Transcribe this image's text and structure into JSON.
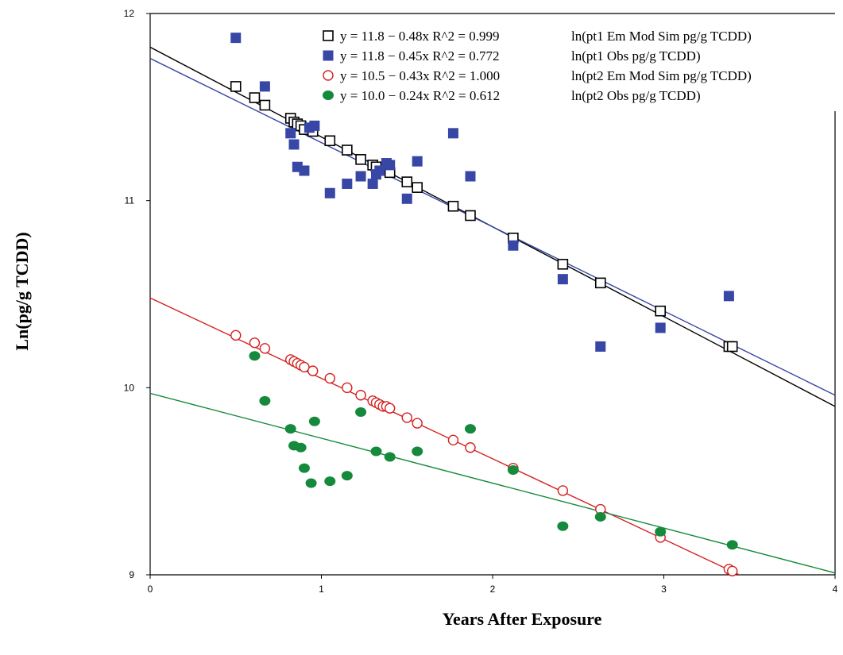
{
  "chart_data": {
    "type": "scatter",
    "xlabel": "Years After Exposure",
    "ylabel": "Ln(pg/g TCDD)",
    "xlim": [
      0,
      4
    ],
    "ylim": [
      9,
      12
    ],
    "x_ticks": [
      "0",
      "1",
      "2",
      "3",
      "4"
    ],
    "y_ticks": [
      "9",
      "10",
      "11",
      "12"
    ],
    "grid": false,
    "legend_position": "top",
    "series": [
      {
        "name": "ln(pt1 Em Mod Sim pg/g TCDD)",
        "equation": "y = 11.8 − 0.48x R^2 = 0.999",
        "color": "#000000",
        "marker": "open-square",
        "fit": {
          "intercept": 11.82,
          "slope": -0.48
        },
        "x": [
          0.5,
          0.61,
          0.67,
          0.82,
          0.84,
          0.86,
          0.88,
          0.9,
          0.95,
          1.05,
          1.15,
          1.23,
          1.3,
          1.32,
          1.4,
          1.5,
          1.56,
          1.77,
          1.87,
          2.12,
          2.41,
          2.63,
          2.98,
          3.38,
          3.4
        ],
        "y": [
          11.61,
          11.55,
          11.51,
          11.44,
          11.42,
          11.41,
          11.4,
          11.38,
          11.37,
          11.32,
          11.27,
          11.22,
          11.19,
          11.18,
          11.15,
          11.1,
          11.07,
          10.97,
          10.92,
          10.8,
          10.66,
          10.56,
          10.41,
          10.22,
          10.22
        ]
      },
      {
        "name": "ln(pt1 Obs pg/g TCDD)",
        "equation": "y = 11.8 − 0.45x R^2 = 0.772",
        "color": "#3847a5",
        "marker": "filled-square",
        "fit": {
          "intercept": 11.76,
          "slope": -0.45
        },
        "x": [
          0.5,
          0.67,
          0.82,
          0.84,
          0.86,
          0.9,
          0.93,
          0.96,
          1.05,
          1.15,
          1.23,
          1.3,
          1.32,
          1.34,
          1.38,
          1.4,
          1.5,
          1.56,
          1.77,
          1.87,
          2.12,
          2.41,
          2.63,
          2.98,
          3.38
        ],
        "y": [
          11.87,
          11.61,
          11.36,
          11.3,
          11.18,
          11.16,
          11.39,
          11.4,
          11.04,
          11.09,
          11.13,
          11.09,
          11.14,
          11.16,
          11.2,
          11.19,
          11.01,
          11.21,
          11.36,
          11.13,
          10.76,
          10.58,
          10.22,
          10.32,
          10.49
        ]
      },
      {
        "name": "ln(pt2 Em Mod Sim pg/g TCDD)",
        "equation": "y = 10.5 − 0.43x R^2 = 1.000",
        "color": "#d42020",
        "marker": "open-circle",
        "fit": {
          "intercept": 10.48,
          "slope": -0.43
        },
        "x": [
          0.5,
          0.61,
          0.67,
          0.82,
          0.84,
          0.86,
          0.88,
          0.9,
          0.95,
          1.05,
          1.15,
          1.23,
          1.3,
          1.32,
          1.34,
          1.36,
          1.38,
          1.4,
          1.5,
          1.56,
          1.77,
          1.87,
          2.12,
          2.41,
          2.63,
          2.98,
          3.38,
          3.4
        ],
        "y": [
          10.28,
          10.24,
          10.21,
          10.15,
          10.14,
          10.13,
          10.12,
          10.11,
          10.09,
          10.05,
          10.0,
          9.96,
          9.93,
          9.92,
          9.91,
          9.9,
          9.9,
          9.89,
          9.84,
          9.81,
          9.72,
          9.68,
          9.57,
          9.45,
          9.35,
          9.2,
          9.03,
          9.02
        ]
      },
      {
        "name": "ln(pt2 Obs pg/g TCDD)",
        "equation": "y = 10.0 − 0.24x R^2 = 0.612",
        "color": "#158a3c",
        "marker": "filled-circle",
        "fit": {
          "intercept": 9.97,
          "slope": -0.24
        },
        "x": [
          0.61,
          0.67,
          0.82,
          0.84,
          0.88,
          0.9,
          0.94,
          0.96,
          1.05,
          1.15,
          1.23,
          1.32,
          1.4,
          1.56,
          1.87,
          2.12,
          2.41,
          2.63,
          2.98,
          3.4
        ],
        "y": [
          10.17,
          9.93,
          9.78,
          9.69,
          9.68,
          9.57,
          9.49,
          9.82,
          9.5,
          9.53,
          9.87,
          9.66,
          9.63,
          9.66,
          9.78,
          9.56,
          9.26,
          9.31,
          9.23,
          9.16
        ]
      }
    ]
  }
}
